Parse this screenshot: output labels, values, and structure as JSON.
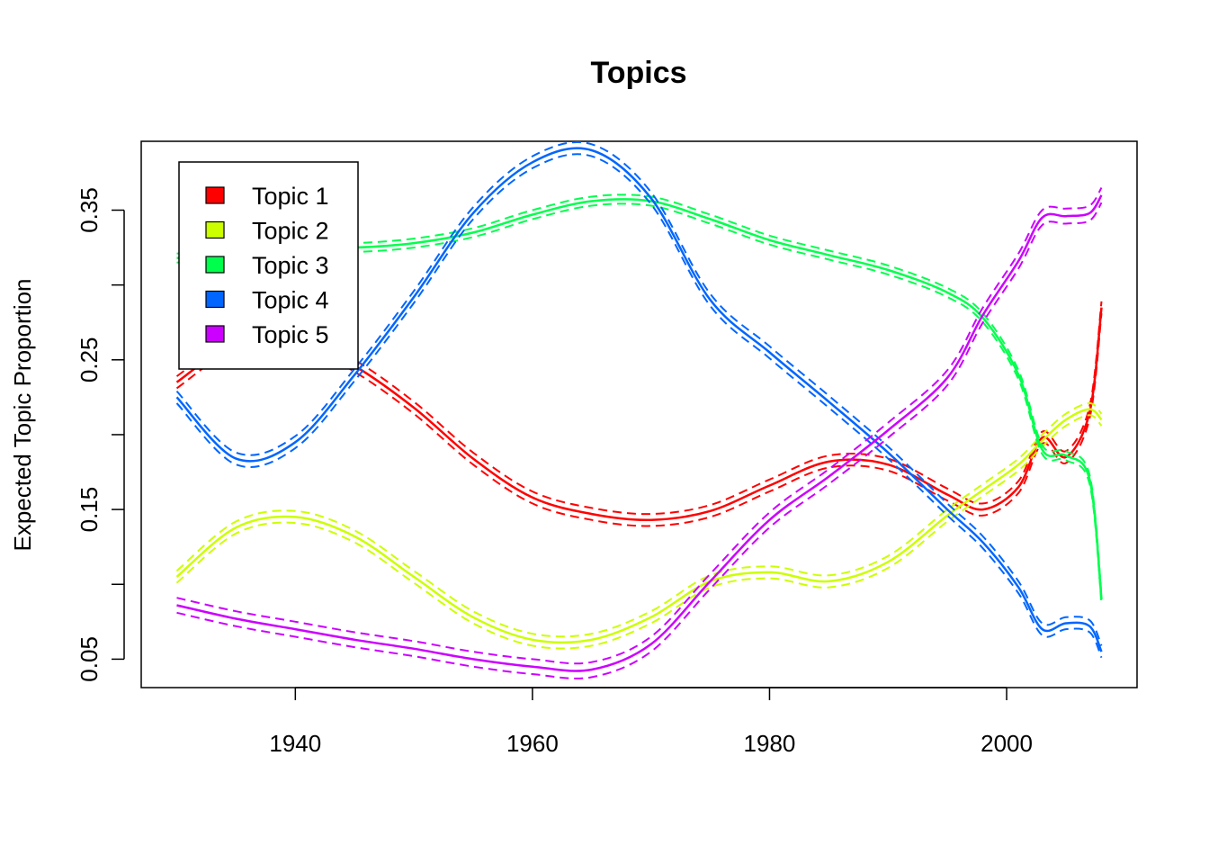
{
  "chart_data": {
    "type": "line",
    "title": "Topics",
    "xlabel": "",
    "ylabel": "Expected Topic Proportion",
    "xlim": [
      1927,
      2011
    ],
    "ylim": [
      0.031,
      0.396
    ],
    "x_ticks": [
      1940,
      1960,
      1980,
      2000
    ],
    "y_ticks": [
      0.05,
      0.15,
      0.25,
      0.35
    ],
    "y_tick_labels": [
      "0.05",
      "0.15",
      "0.25",
      "0.35"
    ],
    "y_minor_ticks": [
      0.1,
      0.2,
      0.3
    ],
    "grid": false,
    "legend_position": "top-left",
    "confidence_bands": "dashed",
    "x": [
      1930,
      1935,
      1940,
      1945,
      1950,
      1955,
      1960,
      1965,
      1970,
      1975,
      1980,
      1985,
      1990,
      1995,
      1998,
      2001,
      2003,
      2005,
      2007,
      2008
    ],
    "series": [
      {
        "name": "Topic 1",
        "color": "#FF0000",
        "values": [
          0.235,
          0.262,
          0.266,
          0.246,
          0.218,
          0.184,
          0.158,
          0.147,
          0.143,
          0.149,
          0.166,
          0.182,
          0.18,
          0.16,
          0.15,
          0.165,
          0.198,
          0.185,
          0.215,
          0.285
        ],
        "band": 0.004
      },
      {
        "name": "Topic 2",
        "color": "#CCFF00",
        "values": [
          0.105,
          0.138,
          0.145,
          0.132,
          0.105,
          0.078,
          0.063,
          0.063,
          0.078,
          0.102,
          0.108,
          0.102,
          0.115,
          0.146,
          0.163,
          0.18,
          0.196,
          0.21,
          0.217,
          0.21
        ],
        "band": 0.004
      },
      {
        "name": "Topic 3",
        "color": "#00FF4D",
        "values": [
          0.318,
          0.322,
          0.325,
          0.325,
          0.328,
          0.335,
          0.347,
          0.356,
          0.356,
          0.344,
          0.33,
          0.32,
          0.31,
          0.295,
          0.278,
          0.24,
          0.19,
          0.186,
          0.17,
          0.09
        ],
        "band": 0.003
      },
      {
        "name": "Topic 4",
        "color": "#0066FF",
        "values": [
          0.225,
          0.184,
          0.195,
          0.24,
          0.292,
          0.348,
          0.382,
          0.39,
          0.358,
          0.29,
          0.255,
          0.222,
          0.188,
          0.15,
          0.128,
          0.098,
          0.07,
          0.074,
          0.072,
          0.055
        ],
        "band": 0.004
      },
      {
        "name": "Topic 5",
        "color": "#CC00FF",
        "values": [
          0.086,
          0.077,
          0.07,
          0.063,
          0.057,
          0.05,
          0.045,
          0.043,
          0.06,
          0.102,
          0.143,
          0.172,
          0.203,
          0.238,
          0.28,
          0.316,
          0.345,
          0.346,
          0.348,
          0.36
        ],
        "band": 0.005
      }
    ]
  }
}
